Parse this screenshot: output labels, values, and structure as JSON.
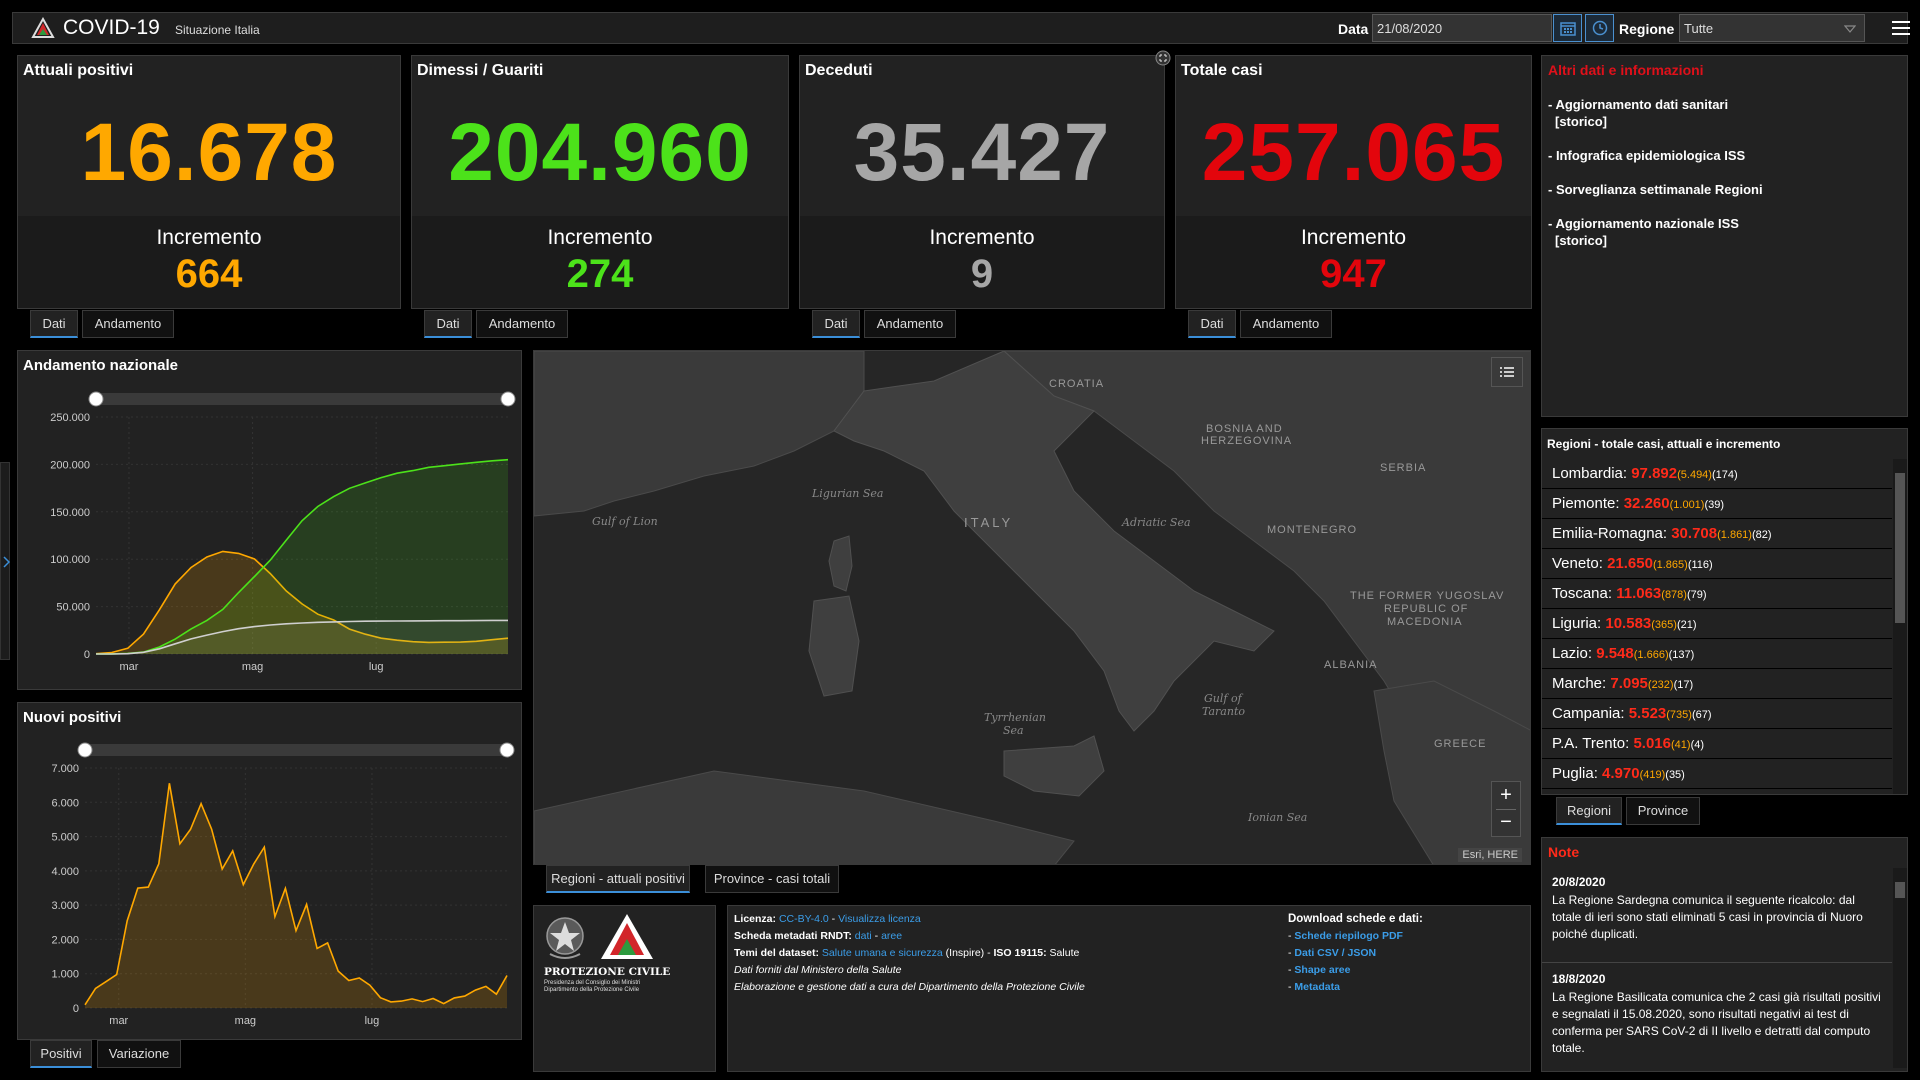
{
  "header": {
    "title": "COVID-19",
    "subtitle": "Situazione Italia",
    "date_label": "Data",
    "date_value": "21/08/2020",
    "region_label": "Regione",
    "region_value": "Tutte"
  },
  "cards": [
    {
      "title": "Attuali positivi",
      "value": "16.678",
      "inc_label": "Incremento",
      "inc_value": "664",
      "color": "#ffa800",
      "tab1": "Dati",
      "tab2": "Andamento"
    },
    {
      "title": "Dimessi / Guariti",
      "value": "204.960",
      "inc_label": "Incremento",
      "inc_value": "274",
      "color": "#4ce21a",
      "tab1": "Dati",
      "tab2": "Andamento"
    },
    {
      "title": "Deceduti",
      "value": "35.427",
      "inc_label": "Incremento",
      "inc_value": "9",
      "color": "#a6a6a6",
      "tab1": "Dati",
      "tab2": "Andamento"
    },
    {
      "title": "Totale casi",
      "value": "257.065",
      "inc_label": "Incremento",
      "inc_value": "947",
      "color": "#e3050c",
      "tab1": "Dati",
      "tab2": "Andamento"
    }
  ],
  "info": {
    "title": "Altri dati e informazioni",
    "links": [
      "- Aggiornamento dati sanitari",
      "[storico]",
      "- Infografica epidemiologica ISS",
      "- Sorveglianza settimanale Regioni",
      "- Aggiornamento nazionale ISS",
      "[storico]"
    ]
  },
  "regions": {
    "title": "Regioni - totale casi, attuali e incremento",
    "rows": [
      {
        "name": "Lombardia:",
        "total": "97.892",
        "current": "(5.494)",
        "inc": "(174)"
      },
      {
        "name": "Piemonte:",
        "total": "32.260",
        "current": "(1.001)",
        "inc": "(39)"
      },
      {
        "name": "Emilia-Romagna:",
        "total": "30.708",
        "current": "(1.861)",
        "inc": "(82)"
      },
      {
        "name": "Veneto:",
        "total": "21.650",
        "current": "(1.865)",
        "inc": "(116)"
      },
      {
        "name": "Toscana:",
        "total": "11.063",
        "current": "(878)",
        "inc": "(79)"
      },
      {
        "name": "Liguria:",
        "total": "10.583",
        "current": "(365)",
        "inc": "(21)"
      },
      {
        "name": "Lazio:",
        "total": "9.548",
        "current": "(1.666)",
        "inc": "(137)"
      },
      {
        "name": "Marche:",
        "total": "7.095",
        "current": "(232)",
        "inc": "(17)"
      },
      {
        "name": "Campania:",
        "total": "5.523",
        "current": "(735)",
        "inc": "(67)"
      },
      {
        "name": "P.A. Trento:",
        "total": "5.016",
        "current": "(41)",
        "inc": "(4)"
      },
      {
        "name": "Puglia:",
        "total": "4.970",
        "current": "(419)",
        "inc": "(35)"
      }
    ],
    "tab1": "Regioni",
    "tab2": "Province"
  },
  "notes": {
    "title": "Note",
    "items": [
      {
        "date": "20/8/2020",
        "text": "La Regione Sardegna comunica il seguente ricalcolo: dal totale di ieri sono stati eliminati 5 casi in provincia di Nuoro poiché duplicati."
      },
      {
        "date": "18/8/2020",
        "text": "La Regione Basilicata comunica che 2 casi già risultati positivi e segnalati il 15.08.2020, sono risultati negativi ai test di conferma per SARS CoV-2 di II livello e detratti dal computo totale."
      }
    ]
  },
  "map": {
    "labels": [
      "CROATIA",
      "BOSNIA AND",
      "HERZEGOVINA",
      "SERBIA",
      "MONTENEGRO",
      "ITALY",
      "THE FORMER YUGOSLAV",
      "REPUBLIC OF",
      "MACEDONIA",
      "ALBANIA",
      "GREECE"
    ],
    "seas": [
      "Ligurian Sea",
      "Gulf of Lion",
      "Adriatic Sea",
      "Tyrrhenian",
      "Sea",
      "Gulf of",
      "Taranto",
      "Ionian Sea"
    ],
    "attribution": "Esri, HERE",
    "tab1": "Regioni - attuali positivi",
    "tab2": "Province - casi totali"
  },
  "logo": {
    "line1": "PROTEZIONE CIVILE",
    "line2": "Presidenza del Consiglio dei Ministri",
    "line3": "Dipartimento della Protezione Civile"
  },
  "license": {
    "l1_label": "Licenza:",
    "l1_link1": "CC-BY-4.0",
    "l1_sep": " - ",
    "l1_link2": "Visualizza licenza",
    "l2_label": "Scheda metadati RNDT:",
    "l2_link1": "dati",
    "l2_sep": " - ",
    "l2_link2": "aree",
    "l3_label": "Temi del dataset:",
    "l3_link": "Salute umana e sicurezza",
    "l3_mid": " (Inspire) - ",
    "l3_iso": "ISO 19115:",
    "l3_end": " Salute",
    "l4": "Dati forniti dal Ministero della Salute",
    "l5": "Elaborazione e gestione dati a cura del Dipartimento della Protezione Civile",
    "dl_title": "Download schede e dati:",
    "dl_links": [
      "Schede riepilogo PDF",
      "Dati CSV / JSON",
      "Shape aree",
      "Metadata"
    ]
  },
  "chart_andamento": {
    "title": "Andamento nazionale",
    "tab1": "",
    "tab2": ""
  },
  "chart_nuovi": {
    "title": "Nuovi positivi",
    "tab1": "Positivi",
    "tab2": "Variazione"
  },
  "chart_data": [
    {
      "type": "line",
      "title": "Andamento nazionale",
      "yticks": [
        "250.000",
        "200.000",
        "150.000",
        "100.000",
        "50.000",
        "0"
      ],
      "xticks": [
        "mar",
        "mag",
        "lug"
      ],
      "ylim": [
        0,
        250000
      ],
      "x": [
        "24/02",
        "01/03",
        "08/03",
        "15/03",
        "22/03",
        "29/03",
        "05/04",
        "12/04",
        "19/04",
        "26/04",
        "03/05",
        "10/05",
        "17/05",
        "24/05",
        "31/05",
        "07/06",
        "14/06",
        "21/06",
        "28/06",
        "05/07",
        "12/07",
        "19/07",
        "26/07",
        "02/08",
        "09/08",
        "16/08",
        "21/08"
      ],
      "series": [
        {
          "color": "#ffa800",
          "values": [
            300,
            1600,
            6000,
            21000,
            46600,
            73900,
            91200,
            102300,
            108200,
            106100,
            100200,
            84800,
            66600,
            52900,
            42000,
            35900,
            26300,
            20900,
            16700,
            14600,
            13000,
            12200,
            12400,
            12500,
            13400,
            15100,
            16678
          ]
        },
        {
          "color": "#4ce21a",
          "values": [
            0,
            90,
            620,
            1970,
            7400,
            15700,
            26500,
            35400,
            47000,
            64900,
            81700,
            99000,
            120000,
            140500,
            155600,
            166000,
            174800,
            180500,
            186100,
            190700,
            193500,
            196900,
            198600,
            200500,
            202200,
            203800,
            204960
          ]
        },
        {
          "color": "#cfcfcf",
          "values": [
            7,
            34,
            366,
            1809,
            5476,
            10779,
            15887,
            19899,
            23660,
            26644,
            28884,
            30560,
            31908,
            32735,
            33415,
            33899,
            34301,
            34634,
            34744,
            34861,
            34954,
            35058,
            35112,
            35171,
            35215,
            35400,
            35427
          ]
        }
      ]
    },
    {
      "type": "line",
      "title": "Nuovi positivi",
      "yticks": [
        "7.000",
        "6.000",
        "5.000",
        "4.000",
        "3.000",
        "2.000",
        "1.000",
        "0"
      ],
      "xticks": [
        "mar",
        "mag",
        "lug"
      ],
      "ylim": [
        0,
        7000
      ],
      "x": [
        "25/02",
        "01/03",
        "05/03",
        "10/03",
        "13/03",
        "15/03",
        "17/03",
        "19/03",
        "21/03",
        "23/03",
        "25/03",
        "27/03",
        "29/03",
        "31/03",
        "03/04",
        "06/04",
        "09/04",
        "12/04",
        "15/04",
        "18/04",
        "21/04",
        "24/04",
        "27/04",
        "01/05",
        "05/05",
        "10/05",
        "15/05",
        "20/05",
        "25/05",
        "01/06",
        "10/06",
        "20/06",
        "01/07",
        "10/07",
        "20/07",
        "01/08",
        "08/08",
        "13/08",
        "16/08",
        "18/08",
        "21/08"
      ],
      "series": [
        {
          "color": "#ffa800",
          "values": [
            93,
            573,
            769,
            977,
            2547,
            3497,
            3526,
            4207,
            6557,
            4789,
            5210,
            5959,
            5217,
            4053,
            4585,
            3599,
            4204,
            4694,
            2667,
            3491,
            2256,
            3021,
            1739,
            1900,
            1075,
            802,
            875,
            665,
            300,
            178,
            202,
            264,
            187,
            276,
            129,
            295,
            347,
            523,
            629,
            403,
            947
          ]
        }
      ]
    }
  ]
}
